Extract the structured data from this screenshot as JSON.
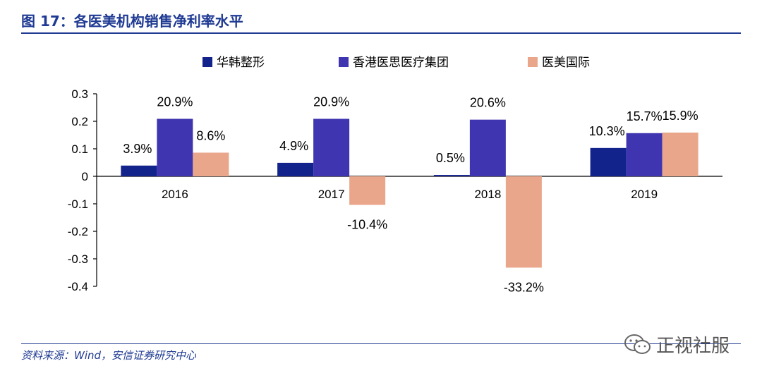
{
  "figure_title": "图 17：各医美机构销售净利率水平",
  "source_note": "资料来源：Wind，安信证券研究中心",
  "watermark_text": "正视社服",
  "chart_data": {
    "type": "bar",
    "title": "",
    "xlabel": "",
    "ylabel": "",
    "categories": [
      "2016",
      "2017",
      "2018",
      "2019"
    ],
    "ylim": [
      -0.4,
      0.3
    ],
    "yticks": [
      0.3,
      0.2,
      0.1,
      0,
      -0.1,
      -0.2,
      -0.3,
      -0.4
    ],
    "ytick_labels": [
      "0.3",
      "0.2",
      "0.1",
      "0",
      "-0.1",
      "-0.2",
      "-0.3",
      "-0.4"
    ],
    "grid": false,
    "legend_position": "top",
    "series": [
      {
        "name": "华韩整形",
        "color": "#13238c",
        "values": [
          0.039,
          0.049,
          0.005,
          0.103
        ],
        "labels": [
          "3.9%",
          "4.9%",
          "0.5%",
          "10.3%"
        ]
      },
      {
        "name": "香港医思医疗集团",
        "color": "#4035b0",
        "values": [
          0.209,
          0.209,
          0.206,
          0.157
        ],
        "labels": [
          "20.9%",
          "20.9%",
          "20.6%",
          "15.7%"
        ]
      },
      {
        "name": "医美国际",
        "color": "#eaa68a",
        "values": [
          0.086,
          -0.104,
          -0.332,
          0.159
        ],
        "labels": [
          "8.6%",
          "-10.4%",
          "-33.2%",
          "15.9%"
        ]
      }
    ]
  }
}
